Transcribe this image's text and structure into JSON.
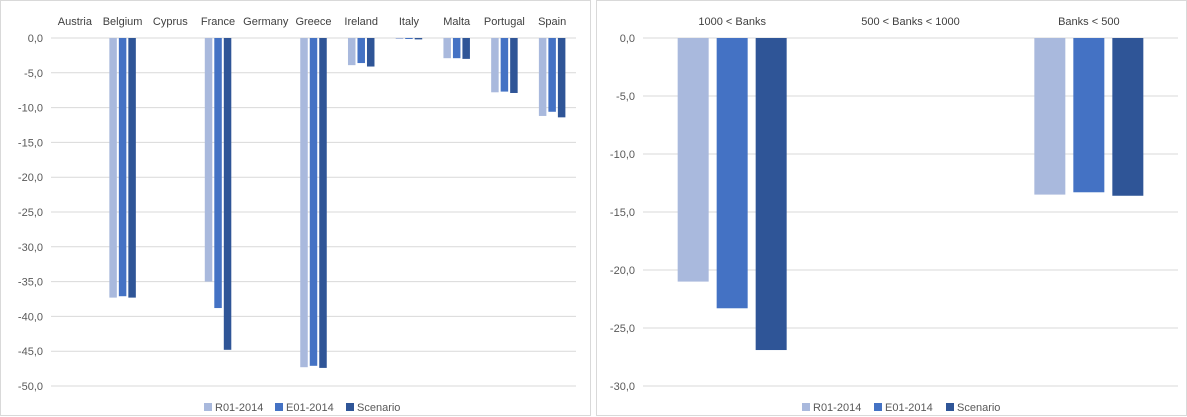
{
  "chart_data": [
    {
      "type": "bar",
      "categories": [
        "Austria",
        "Belgium",
        "Cyprus",
        "France",
        "Germany",
        "Greece",
        "Ireland",
        "Italy",
        "Malta",
        "Portugal",
        "Spain"
      ],
      "series": [
        {
          "name": "R01-2014",
          "color": "#a9b9dd",
          "values": [
            0,
            -37.3,
            0,
            -35.0,
            0,
            -47.3,
            -3.9,
            -0.1,
            -2.9,
            -7.8,
            -11.2
          ]
        },
        {
          "name": "E01-2014",
          "color": "#4472c4",
          "values": [
            0,
            -37.1,
            0,
            -38.8,
            0,
            -47.1,
            -3.6,
            -0.1,
            -2.9,
            -7.7,
            -10.6
          ]
        },
        {
          "name": "Scenario",
          "color": "#2f5597",
          "values": [
            0,
            -37.3,
            0,
            -44.8,
            0,
            -47.4,
            -4.1,
            -0.2,
            -3.0,
            -7.9,
            -11.4
          ]
        }
      ],
      "ylim": [
        -50,
        0
      ],
      "yticks": [
        0,
        -5,
        -10,
        -15,
        -20,
        -25,
        -30,
        -35,
        -40,
        -45,
        -50
      ],
      "ytick_labels": [
        "0,0",
        "-5,0",
        "-10,0",
        "-15,0",
        "-20,0",
        "-25,0",
        "-30,0",
        "-35,0",
        "-40,0",
        "-45,0",
        "-50,0"
      ],
      "category_labels_position": "top",
      "grid": true,
      "legend": "bottom"
    },
    {
      "type": "bar",
      "categories": [
        "1000 < Banks",
        "500 < Banks < 1000",
        "Banks < 500"
      ],
      "series": [
        {
          "name": "R01-2014",
          "color": "#a9b9dd",
          "values": [
            -21.0,
            0,
            -13.5
          ]
        },
        {
          "name": "E01-2014",
          "color": "#4472c4",
          "values": [
            -23.3,
            0,
            -13.3
          ]
        },
        {
          "name": "Scenario",
          "color": "#2f5597",
          "values": [
            -26.9,
            0,
            -13.6
          ]
        }
      ],
      "ylim": [
        -30,
        0
      ],
      "yticks": [
        0,
        -5,
        -10,
        -15,
        -20,
        -25,
        -30
      ],
      "ytick_labels": [
        "0,0",
        "-5,0",
        "-10,0",
        "-15,0",
        "-20,0",
        "-25,0",
        "-30,0"
      ],
      "category_labels_position": "top",
      "grid": true,
      "legend": "bottom"
    }
  ]
}
